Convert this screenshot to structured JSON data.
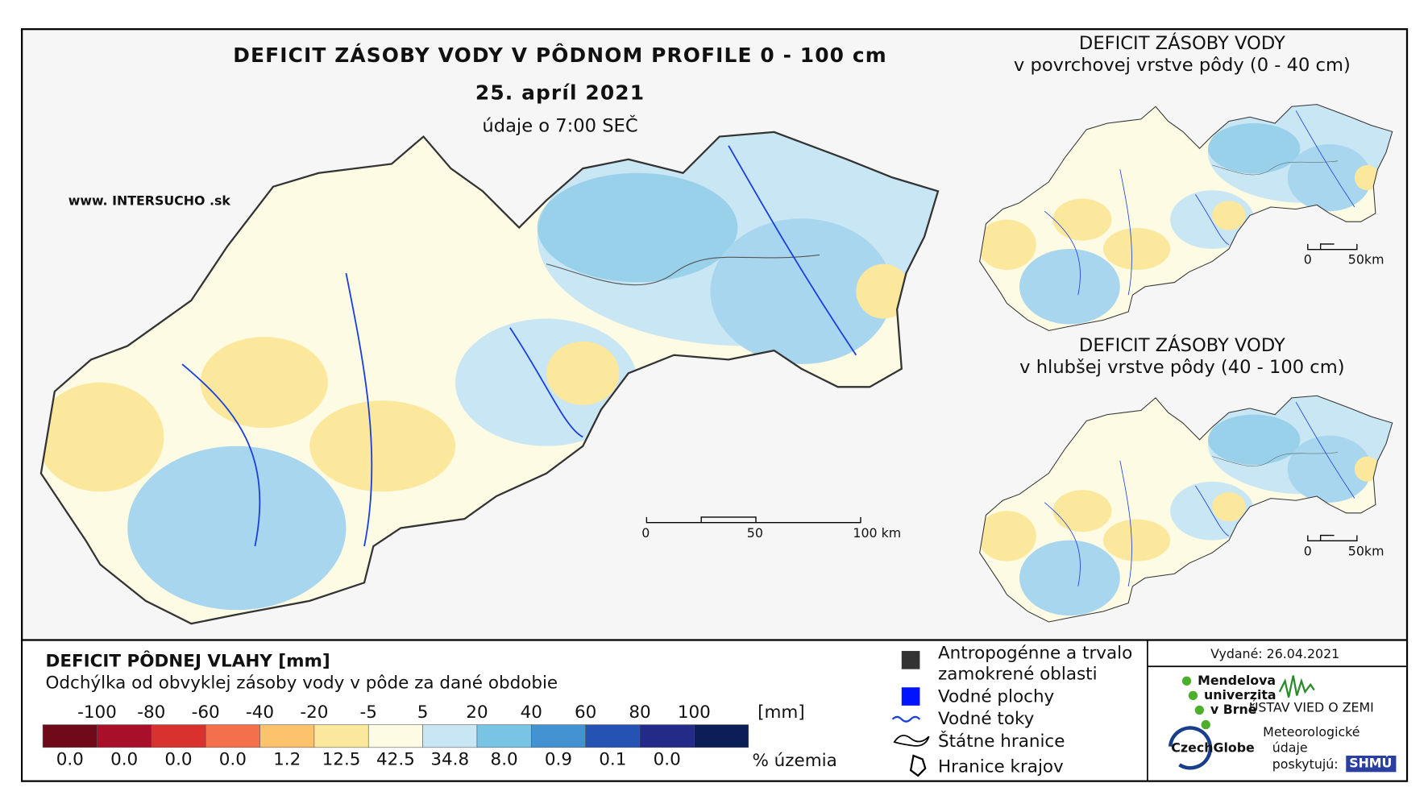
{
  "map": {
    "title": "DEFICIT ZÁSOBY VODY V PÔDNOM PROFILE 0 - 100 cm",
    "date": "25. apríl 2021",
    "time_note": "údaje o 7:00 SEČ",
    "website": "www. INTERSUCHO .sk",
    "scale_labels": [
      "0",
      "50",
      "100 km"
    ]
  },
  "inset_top": {
    "title": "DEFICIT ZÁSOBY VODY",
    "subtitle": "v povrchovej vrstve pôdy (0 - 40 cm)",
    "scale_labels": [
      "0",
      "50km"
    ]
  },
  "inset_bottom": {
    "title": "DEFICIT ZÁSOBY VODY",
    "subtitle": "v hlubšej vrstve pôdy (40 - 100 cm)",
    "scale_labels": [
      "0",
      "50km"
    ]
  },
  "legend": {
    "title": "DEFICIT PÔDNEJ VLAHY [mm]",
    "subtitle": "Odchýlka od obvyklej zásoby vody v pôde za dané obdobie",
    "ticks": [
      "-100",
      "-80",
      "-60",
      "-40",
      "-20",
      "-5",
      "5",
      "20",
      "40",
      "60",
      "80",
      "100"
    ],
    "unit": "[mm]",
    "colors": [
      "#6e0a1a",
      "#a8102a",
      "#d9322e",
      "#f4704a",
      "#fdc26c",
      "#fbe89c",
      "#fdfbe3",
      "#c9e6f4",
      "#79c3e4",
      "#4393d2",
      "#2453b3",
      "#232a87",
      "#0c1e57"
    ],
    "percents": [
      "0.0",
      "0.0",
      "0.0",
      "0.0",
      "1.2",
      "12.5",
      "42.5",
      "34.8",
      "8.0",
      "0.9",
      "0.1",
      "0.0"
    ],
    "percent_unit": "% územia"
  },
  "symbols": {
    "urban": [
      "Antropogénne a trvalo",
      "zamokrené oblasti"
    ],
    "water_bodies": "Vodné plochy",
    "rivers": "Vodné toky",
    "state_border": "Štátne hranice",
    "region_border": "Hranice krajov"
  },
  "info": {
    "issued": "Vydané: 26.04.2021",
    "logos": [
      "Mendelova",
      "univerzita",
      "v Brně",
      "CzechGlobe",
      "ÚSTAV VIED O ZEMI"
    ],
    "provider": [
      "Meteorologické",
      "údaje",
      "poskytujú:"
    ],
    "provider_logo": "SHMÚ"
  }
}
